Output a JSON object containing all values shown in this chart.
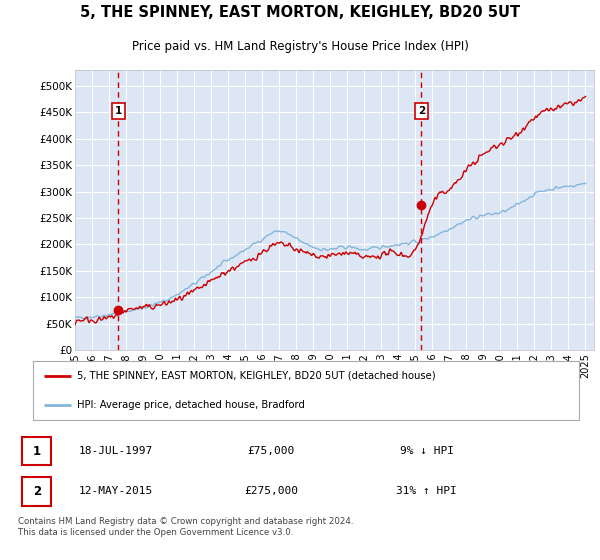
{
  "title": "5, THE SPINNEY, EAST MORTON, KEIGHLEY, BD20 5UT",
  "subtitle": "Price paid vs. HM Land Registry's House Price Index (HPI)",
  "legend_line1": "5, THE SPINNEY, EAST MORTON, KEIGHLEY, BD20 5UT (detached house)",
  "legend_line2": "HPI: Average price, detached house, Bradford",
  "footnote": "Contains HM Land Registry data © Crown copyright and database right 2024.\nThis data is licensed under the Open Government Licence v3.0.",
  "marker1": {
    "label": "1",
    "date": "18-JUL-1997",
    "price": 75000,
    "hpi_rel": "9% ↓ HPI",
    "x_year": 1997.54
  },
  "marker2": {
    "label": "2",
    "date": "12-MAY-2015",
    "price": 275000,
    "hpi_rel": "31% ↑ HPI",
    "x_year": 2015.36
  },
  "ylim": [
    0,
    530000
  ],
  "xlim_start": 1995,
  "xlim_end": 2025.5,
  "bg_color": "#dce6f5",
  "hpi_line_color": "#85b5d9",
  "price_line_color": "#cc0000",
  "marker_color": "#cc0000",
  "dashed_line_color": "#cc0000",
  "grid_color": "#ffffff",
  "yticks": [
    0,
    50000,
    100000,
    150000,
    200000,
    250000,
    300000,
    350000,
    400000,
    450000,
    500000
  ],
  "ytick_labels": [
    "£0",
    "£50K",
    "£100K",
    "£150K",
    "£200K",
    "£250K",
    "£300K",
    "£350K",
    "£400K",
    "£450K",
    "£500K"
  ],
  "xticks": [
    1995,
    1996,
    1997,
    1998,
    1999,
    2000,
    2001,
    2002,
    2003,
    2004,
    2005,
    2006,
    2007,
    2008,
    2009,
    2010,
    2011,
    2012,
    2013,
    2014,
    2015,
    2016,
    2017,
    2018,
    2019,
    2020,
    2021,
    2022,
    2023,
    2024,
    2025
  ],
  "hpi_values_approx": [
    60000,
    63000,
    67000,
    73000,
    80000,
    90000,
    105000,
    125000,
    148000,
    170000,
    190000,
    210000,
    225000,
    210000,
    195000,
    190000,
    195000,
    190000,
    195000,
    200000,
    205000,
    215000,
    230000,
    245000,
    255000,
    260000,
    275000,
    295000,
    305000,
    310000,
    315000
  ],
  "prop_values_approx": [
    55000,
    57000,
    60000,
    75000,
    80000,
    85000,
    95000,
    110000,
    130000,
    150000,
    165000,
    185000,
    200000,
    190000,
    180000,
    178000,
    183000,
    175000,
    180000,
    183000,
    190000,
    275000,
    305000,
    340000,
    370000,
    390000,
    410000,
    440000,
    455000,
    465000,
    475000
  ]
}
